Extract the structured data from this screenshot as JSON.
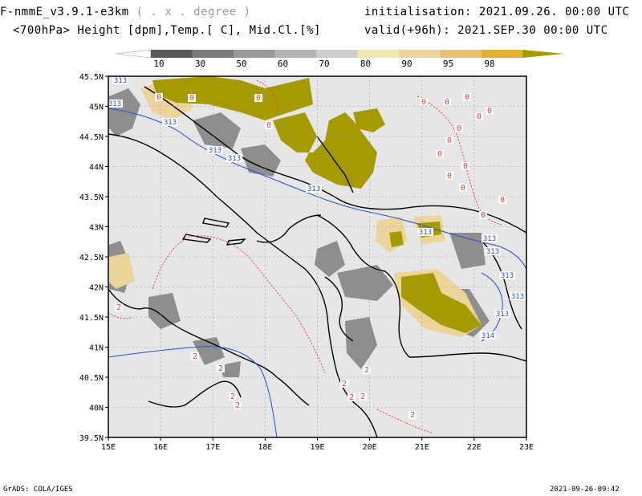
{
  "header": {
    "title": "F-nmmE_v3.9.1-e3km",
    "projection": "( . x . degree )",
    "subtitle": "<700hPa> Height [dpm],Temp.[ C], Mid.Cl.[%]",
    "init": "initialisation: 2021.09.26.  00:00 UTC",
    "valid": "valid(+96h): 2021.SEP.30 00:00 UTC"
  },
  "colorbar": {
    "labels": [
      "10",
      "30",
      "50",
      "60",
      "70",
      "80",
      "90",
      "95",
      "98"
    ],
    "colors": [
      "#5a5a5a",
      "#7a7a7a",
      "#999999",
      "#b4b4b4",
      "#cdcdcd",
      "#ede8b0",
      "#ebd59a",
      "#e8c070",
      "#e4b02e",
      "#a59a00"
    ]
  },
  "map": {
    "lat_labels": [
      "45.5N",
      "45N",
      "44.5N",
      "44N",
      "43.5N",
      "43N",
      "42.5N",
      "42N",
      "41.5N",
      "41N",
      "40.5N",
      "40N",
      "39.5N"
    ],
    "lon_labels": [
      "15E",
      "16E",
      "17E",
      "18E",
      "19E",
      "20E",
      "21E",
      "22E",
      "23E"
    ],
    "height_labels": [
      "313",
      "313",
      "313",
      "313",
      "313",
      "313",
      "313",
      "313",
      "313",
      "313",
      "313",
      "313",
      "314"
    ],
    "temp_labels": [
      "0",
      "0",
      "0",
      "0",
      "0",
      "0",
      "0",
      "0",
      "0",
      "0",
      "0",
      "0",
      "0",
      "0",
      "0",
      "0",
      "0",
      "2",
      "2",
      "2",
      "2",
      "2",
      "2",
      "2",
      "2",
      "2",
      "2"
    ],
    "colors": {
      "land": "#e6e6e6",
      "height_contour": "#2a4fd0",
      "temp_contour": "#e04040",
      "border": "#000000"
    }
  },
  "footer": {
    "left": "GrADS: COLA/IGES",
    "right": "2021-09-26-09:42"
  }
}
